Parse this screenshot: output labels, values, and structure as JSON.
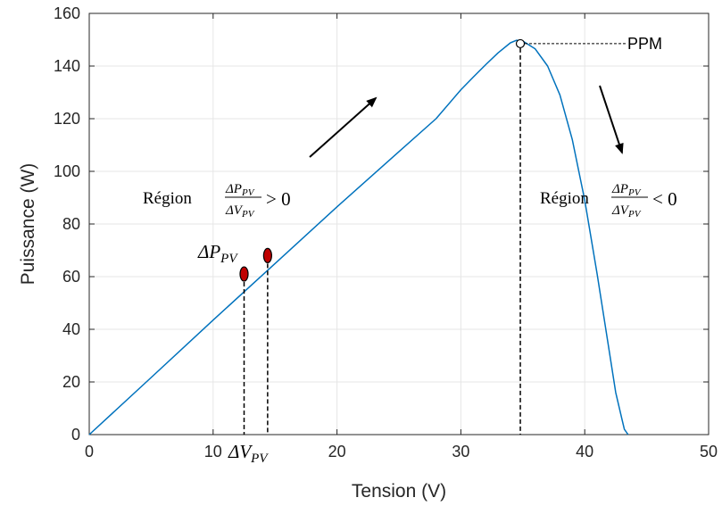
{
  "chart_data": {
    "type": "line",
    "title": "",
    "xlabel": "Tension (V)",
    "ylabel": "Puissance (W)",
    "xlim": [
      0,
      50
    ],
    "ylim": [
      0,
      160
    ],
    "x_ticks": [
      0,
      10,
      20,
      30,
      40,
      50
    ],
    "y_ticks": [
      0,
      20,
      40,
      60,
      80,
      100,
      120,
      140,
      160
    ],
    "x_tick_labels": [
      "0",
      "10",
      "20",
      "30",
      "40",
      "50"
    ],
    "y_tick_labels": [
      "0",
      "20",
      "40",
      "60",
      "80",
      "100",
      "120",
      "140",
      "160"
    ],
    "grid": true,
    "line_color": "#0072BD",
    "series": [
      {
        "x": [
          0,
          5,
          10,
          15,
          20,
          25,
          28,
          30,
          31,
          32,
          33,
          34,
          34.5,
          35,
          36,
          37,
          38,
          39,
          40,
          41,
          42,
          42.5,
          43,
          43.2,
          43.5
        ],
        "y": [
          0,
          21.7,
          43.5,
          65,
          86.5,
          107.5,
          120,
          131,
          135.8,
          140.5,
          145,
          148.8,
          149.8,
          149.5,
          146.5,
          140,
          129,
          112,
          89,
          61,
          31,
          16,
          6,
          2,
          0
        ]
      }
    ],
    "points": [
      {
        "x": 12.5,
        "y": 61,
        "color": "#c00000"
      },
      {
        "x": 14.4,
        "y": 68,
        "color": "#c00000"
      }
    ],
    "mpp": {
      "x": 34.8,
      "y": 148.5
    },
    "annotations": {
      "ppm": "PPM",
      "region_left_word": "Région",
      "region_right_word": "Région",
      "delta_p": "ΔP",
      "delta_v": "ΔV",
      "pv_subscript": "PV",
      "greater_zero": "> 0",
      "less_zero": "< 0"
    }
  }
}
